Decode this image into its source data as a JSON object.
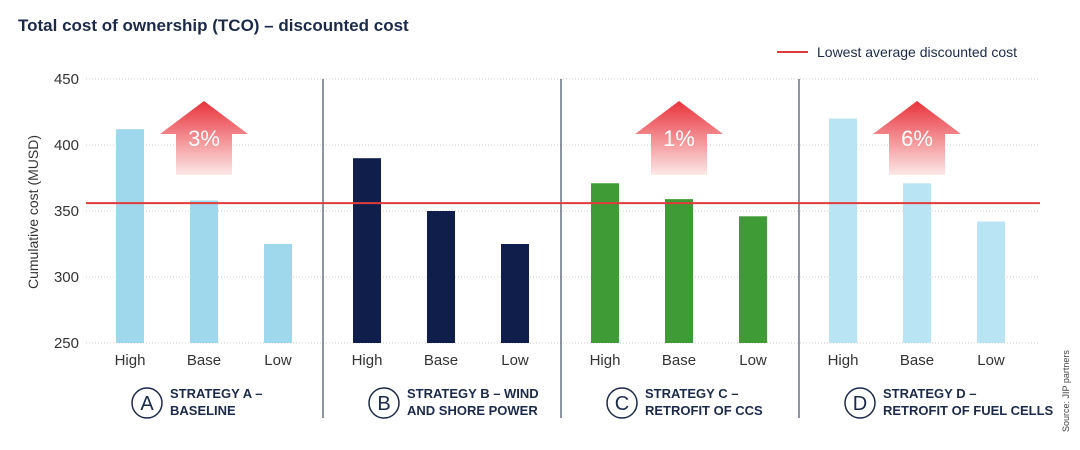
{
  "chart_data": {
    "type": "bar",
    "title": "Total cost of ownership (TCO) – discounted cost",
    "ylabel": "Cumulative cost (MUSD)",
    "ylim": [
      250,
      450
    ],
    "yticks": [
      250,
      300,
      350,
      400,
      450
    ],
    "grid": true,
    "reference_line": {
      "label": "Lowest average discounted cost",
      "value": 356,
      "color": "#e03c3c"
    },
    "legend_position": "top-right",
    "groups": [
      {
        "badge": "A",
        "label_lines": [
          "STRATEGY A –",
          "BASELINE"
        ],
        "categories": [
          "High",
          "Base",
          "Low"
        ],
        "values": [
          412,
          358,
          325
        ],
        "color": "#9fd8ec",
        "increase_label": "3%"
      },
      {
        "badge": "B",
        "label_lines": [
          "STRATEGY B – WIND",
          "AND SHORE POWER"
        ],
        "categories": [
          "High",
          "Base",
          "Low"
        ],
        "values": [
          390,
          350,
          325
        ],
        "color": "#0f1e4a",
        "increase_label": ""
      },
      {
        "badge": "C",
        "label_lines": [
          "STRATEGY C –",
          "RETROFIT OF CCS"
        ],
        "categories": [
          "High",
          "Base",
          "Low"
        ],
        "values": [
          371,
          359,
          346
        ],
        "color": "#3f9b35",
        "increase_label": "1%"
      },
      {
        "badge": "D",
        "label_lines": [
          "STRATEGY D –",
          "RETROFIT OF FUEL CELLS"
        ],
        "categories": [
          "High",
          "Base",
          "Low"
        ],
        "values": [
          420,
          371,
          342
        ],
        "color": "#b8e4f4",
        "increase_label": "6%"
      }
    ],
    "source": "Source: JIP partners"
  },
  "colors": {
    "text": "#1b2a4a",
    "grid": "#cccccc",
    "divider": "#1b2a4a",
    "arrow_top": "#e8333b",
    "arrow_bottom": "#fbe3e3"
  }
}
